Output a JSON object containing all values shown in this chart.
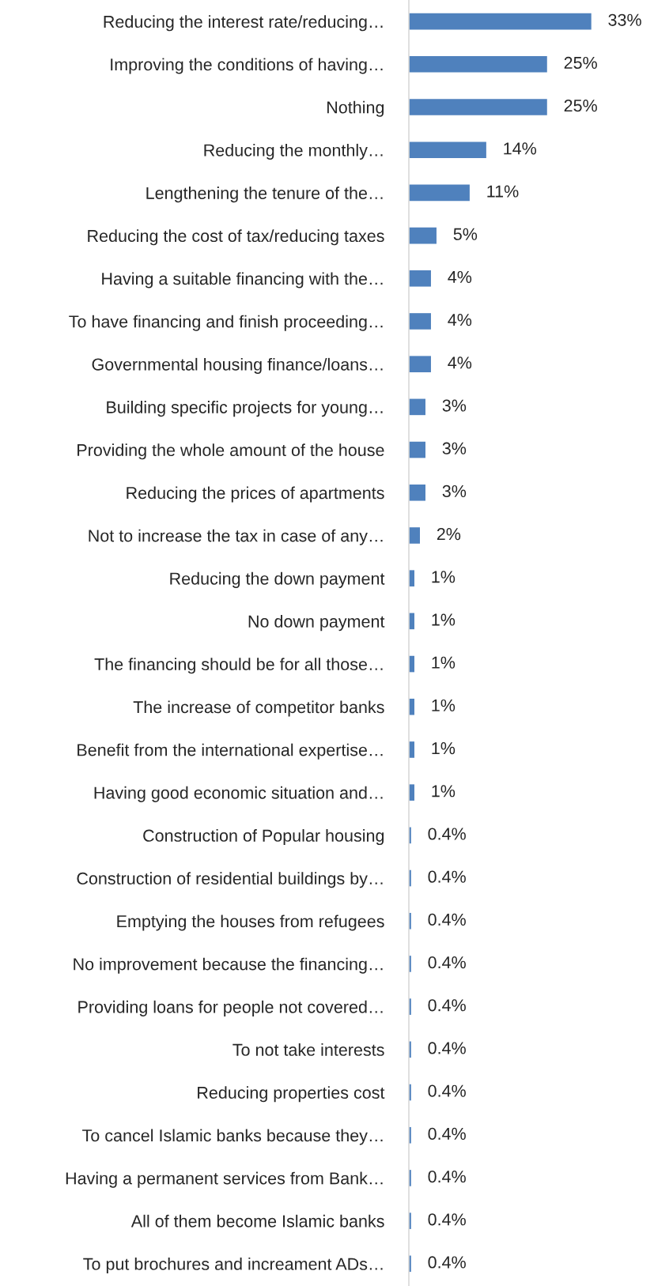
{
  "chart_data": {
    "type": "bar",
    "orientation": "horizontal",
    "color": "#4f81bd",
    "categories": [
      "Reducing the interest rate/reducing…",
      "Improving the conditions of having…",
      "Nothing",
      "Reducing the monthly…",
      "Lengthening the tenure of the…",
      "Reducing the cost of tax/reducing taxes",
      "Having a suitable financing with the…",
      "To have financing and finish proceeding…",
      "Governmental housing finance/loans…",
      "Building specific projects for young…",
      "Providing the whole amount of the house",
      "Reducing the prices of apartments",
      "Not to increase the tax in case of any…",
      "Reducing the down payment",
      "No down payment",
      "The financing should be for all those…",
      "The increase of competitor banks",
      "Benefit from the international expertise…",
      "Having good economic situation and…",
      "Construction of Popular housing",
      "Construction of residential buildings by…",
      "Emptying the houses from refugees",
      "No improvement because the financing…",
      "Providing loans for people not covered…",
      "To not take interests",
      "Reducing properties cost",
      "To cancel Islamic banks because they…",
      "Having a permanent services from Bank…",
      "All of them become Islamic banks",
      "To put brochures and increament ADs…"
    ],
    "values": [
      33,
      25,
      25,
      14,
      11,
      5,
      4,
      4,
      4,
      3,
      3,
      3,
      2,
      1,
      1,
      1,
      1,
      1,
      1,
      0.4,
      0.4,
      0.4,
      0.4,
      0.4,
      0.4,
      0.4,
      0.4,
      0.4,
      0.4,
      0.4
    ],
    "value_labels": [
      "33%",
      "25%",
      "25%",
      "14%",
      "11%",
      "5%",
      "4%",
      "4%",
      "4%",
      "3%",
      "3%",
      "3%",
      "2%",
      "1%",
      "1%",
      "1%",
      "1%",
      "1%",
      "1%",
      "0.4%",
      "0.4%",
      "0.4%",
      "0.4%",
      "0.4%",
      "0.4%",
      "0.4%",
      "0.4%",
      "0.4%",
      "0.4%",
      "0.4%"
    ],
    "grid": false,
    "legend": false
  }
}
